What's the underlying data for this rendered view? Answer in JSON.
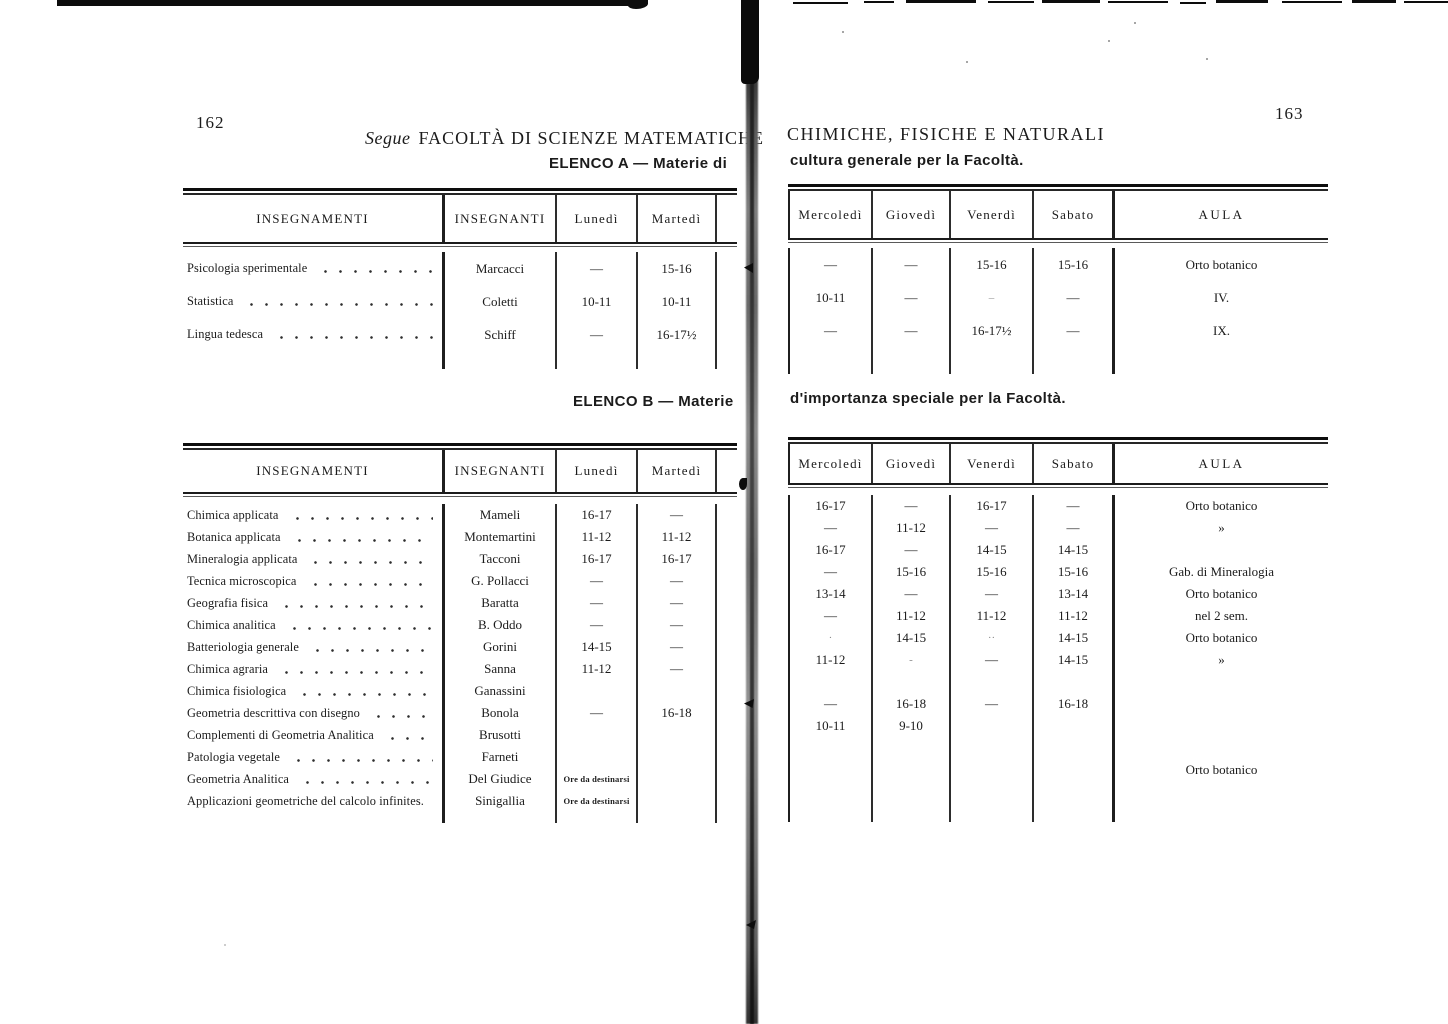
{
  "page_left": {
    "page_number": "162",
    "title_prefix": "Segue",
    "title_main": "FACOLTÀ DI SCIENZE MATEMATICHE",
    "elenco_a_heading": "ELENCO A — Materie di",
    "elenco_b_heading": "ELENCO B — Materie",
    "table_a": {
      "headers": [
        "INSEGNAMENTI",
        "INSEGNANTI",
        "Lunedì",
        "Martedì"
      ],
      "rows": [
        [
          "Psicologia sperimentale",
          "Marcacci",
          "—",
          "15-16"
        ],
        [
          "Statistica",
          "Coletti",
          "10-11",
          "10-11"
        ],
        [
          "Lingua tedesca",
          "Schiff",
          "—",
          "16-17½"
        ]
      ]
    },
    "table_b": {
      "headers": [
        "INSEGNAMENTI",
        "INSEGNANTI",
        "Lunedì",
        "Martedì"
      ],
      "rows": [
        [
          "Chimica applicata",
          "Mameli",
          "16-17",
          "—"
        ],
        [
          "Botanica applicata",
          "Montemartini",
          "11-12",
          "11-12"
        ],
        [
          "Mineralogia applicata",
          "Tacconi",
          "16-17",
          "16-17"
        ],
        [
          "Tecnica microscopica",
          "G. Pollacci",
          "—",
          "—"
        ],
        [
          "Geografia fisica",
          "Baratta",
          "—",
          "—"
        ],
        [
          "Chimica analitica",
          "B. Oddo",
          "—",
          "—"
        ],
        [
          "Batteriologia generale",
          "Gorini",
          "14-15",
          "—"
        ],
        [
          "Chimica agraria",
          "Sanna",
          "11-12",
          "—"
        ],
        [
          "Chimica fisiologica",
          "Ganassini",
          "",
          ""
        ],
        [
          "Geometria descrittiva con disegno",
          "Bonola",
          "—",
          "16-18"
        ],
        [
          "Complementi di Geometria Analitica",
          "Brusotti",
          "",
          ""
        ],
        [
          "Patologia vegetale",
          "Farneti",
          "",
          ""
        ],
        [
          "Geometria Analitica",
          "Del Giudice",
          "Ore da destinarsi",
          ""
        ],
        [
          "Applicazioni geometriche del calcolo infinites.",
          "Sinigallia",
          "Ore da destinarsi",
          ""
        ]
      ]
    }
  },
  "page_right": {
    "page_number": "163",
    "title": "CHIMICHE, FISICHE E NATURALI",
    "subtitle_a": "cultura generale per la Facoltà.",
    "subtitle_b": "d'importanza speciale per la Facoltà.",
    "table_a": {
      "headers": [
        "Mercoledì",
        "Giovedì",
        "Venerdì",
        "Sabato",
        "AULA"
      ],
      "rows": [
        [
          "—",
          "—",
          "15-16",
          "15-16",
          "Orto botanico"
        ],
        [
          "10-11",
          "—",
          "–",
          "—",
          "IV."
        ],
        [
          "—",
          "—",
          "16-17½",
          "—",
          "IX."
        ]
      ]
    },
    "table_b": {
      "headers": [
        "Mercoledì",
        "Giovedì",
        "Venerdì",
        "Sabato",
        "AULA"
      ],
      "rows": [
        [
          "16-17",
          "—",
          "16-17",
          "—",
          "Orto botanico"
        ],
        [
          "—",
          "11-12",
          "—",
          "—",
          "»"
        ],
        [
          "16-17",
          "—",
          "14-15",
          "14-15",
          ""
        ],
        [
          "—",
          "15-16",
          "15-16",
          "15-16",
          "Gab. di Mineralogia"
        ],
        [
          "13-14",
          "—",
          "—",
          "13-14",
          "Orto botanico"
        ],
        [
          "—",
          "11-12",
          "11-12",
          "11-12",
          "nel 2 sem."
        ],
        [
          "·",
          "14-15",
          "··",
          "14-15",
          "Orto botanico"
        ],
        [
          "11-12",
          "-",
          "—",
          "14-15",
          "»"
        ],
        [
          "",
          "",
          "",
          "",
          ""
        ],
        [
          "—",
          "16-18",
          "—",
          "16-18",
          ""
        ],
        [
          "10-11",
          "9-10",
          "",
          "",
          ""
        ],
        [
          "",
          "",
          "",
          "",
          ""
        ],
        [
          "",
          "",
          "",
          "",
          "Orto botanico"
        ],
        [
          "",
          "",
          "",
          "",
          ""
        ]
      ]
    }
  }
}
